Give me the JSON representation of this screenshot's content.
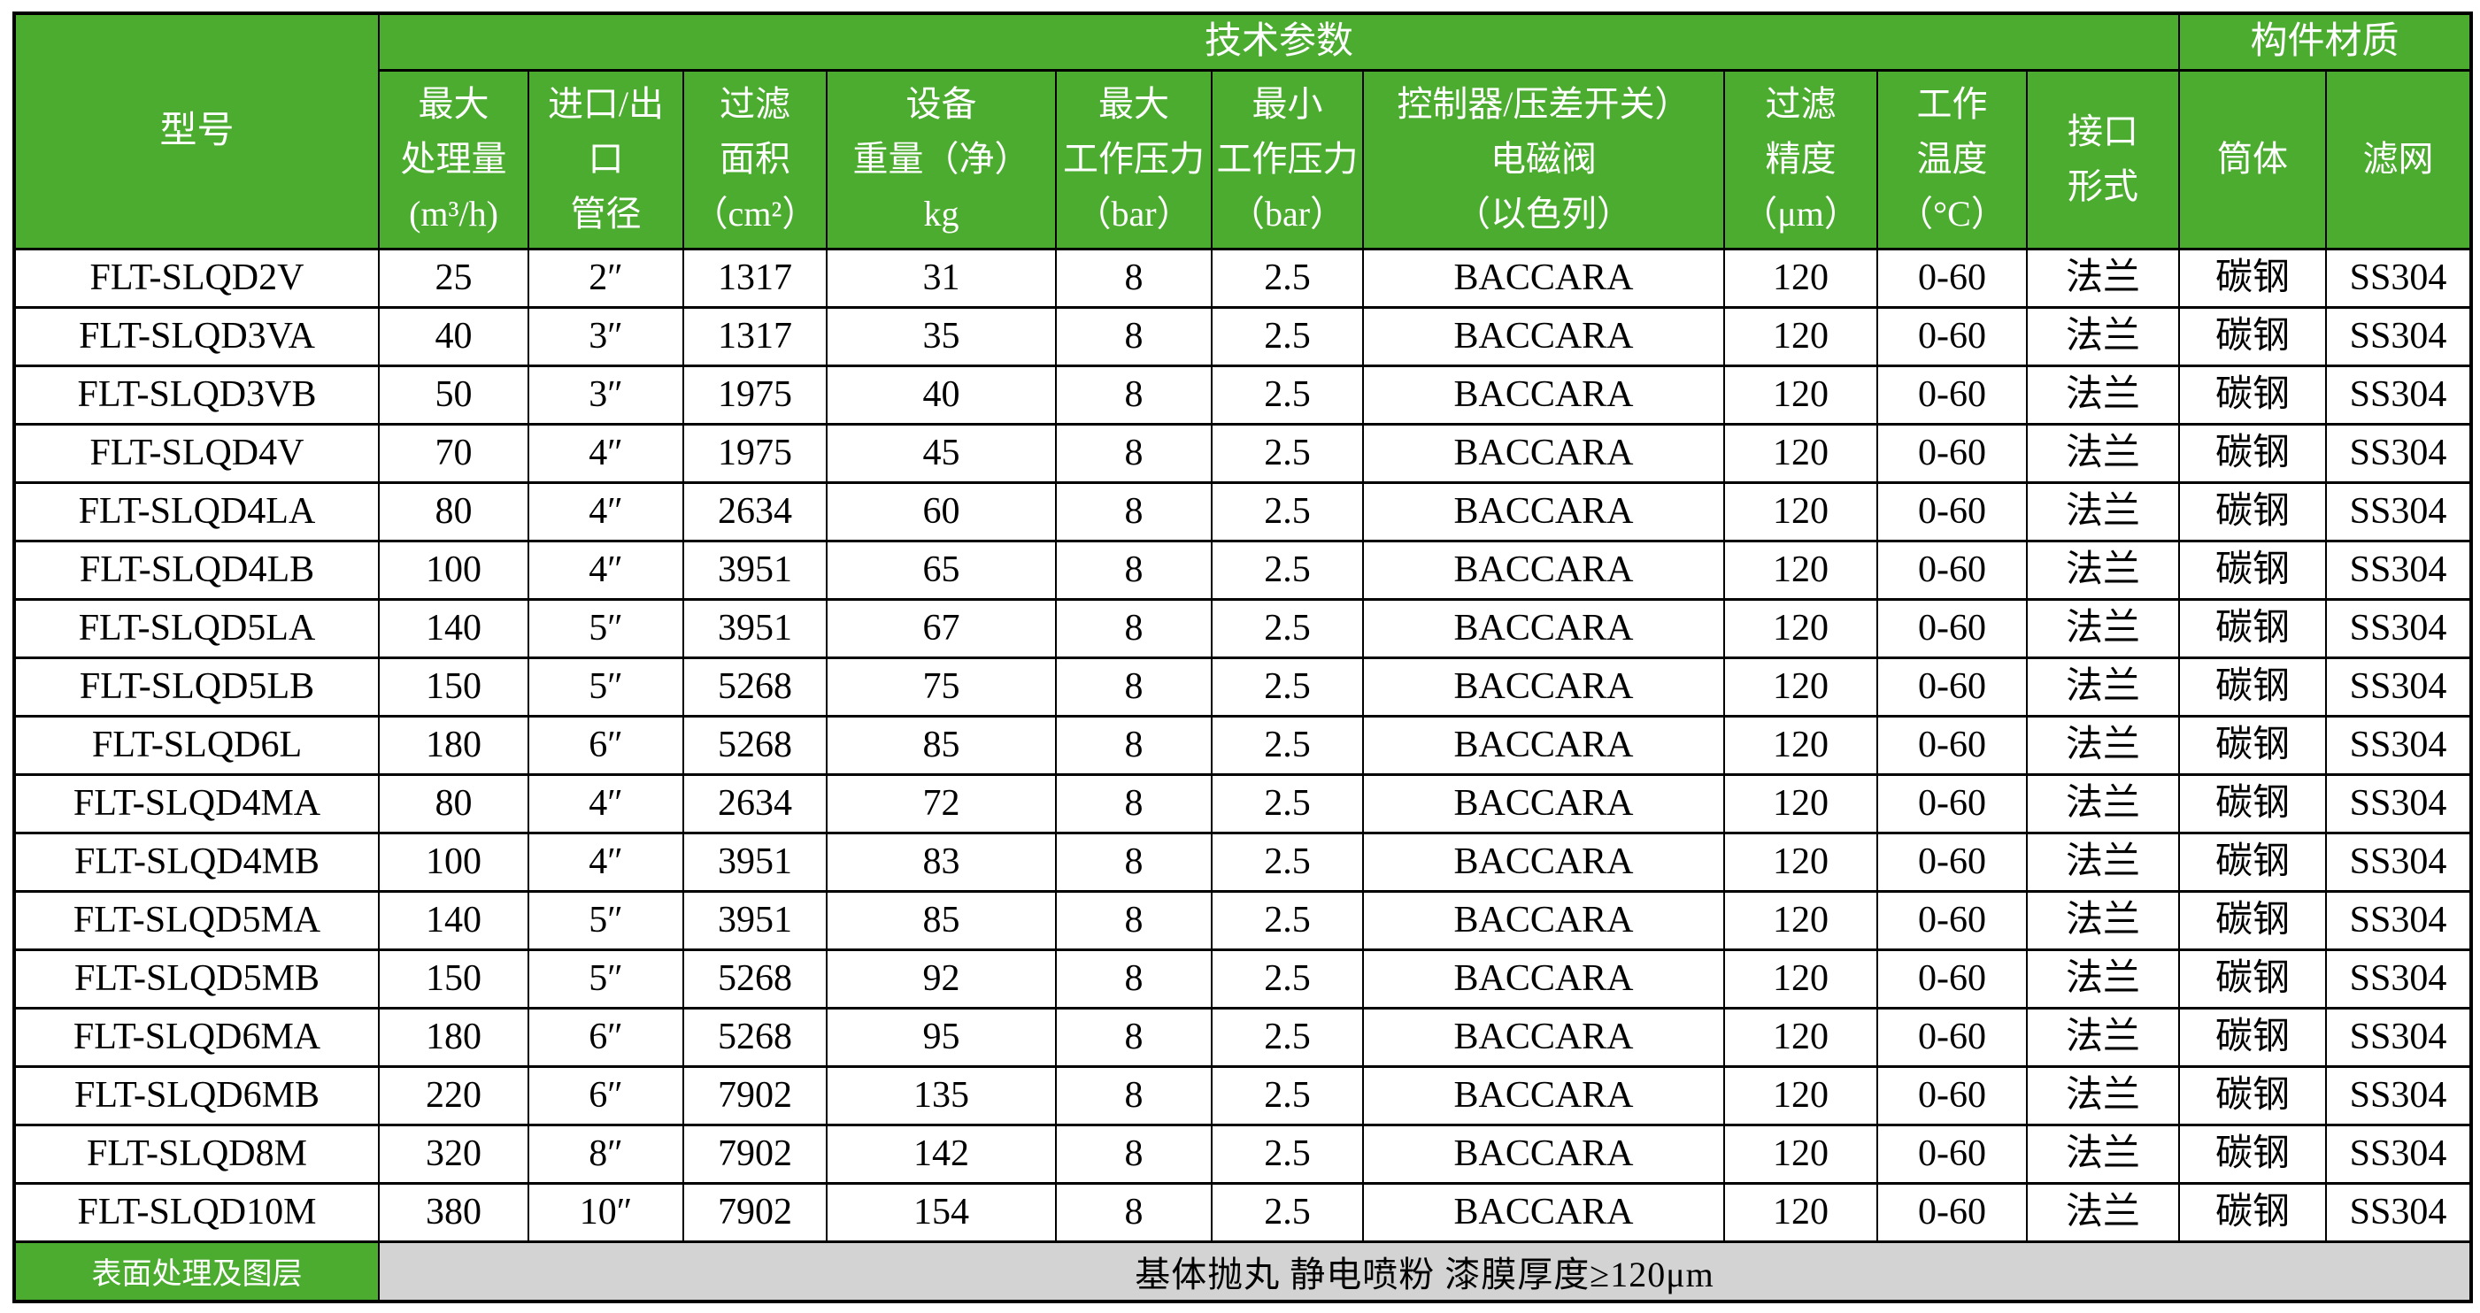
{
  "colors": {
    "header_green": "#4cac2f",
    "footer_gray": "#d3d3d3",
    "border": "#000000",
    "header_text": "#ffffff",
    "body_text": "#000000"
  },
  "table": {
    "group_headers": [
      {
        "label": "技术参数"
      },
      {
        "label": "构件材质"
      }
    ],
    "columns": [
      {
        "id": "model",
        "label_lines": [
          "型号"
        ]
      },
      {
        "id": "max_flow",
        "label_lines": [
          "最大",
          "处理量",
          "(m³/h)"
        ]
      },
      {
        "id": "pipe",
        "label_lines": [
          "进口/出",
          "口",
          "管径"
        ]
      },
      {
        "id": "filter_area",
        "label_lines": [
          "过滤",
          "面积",
          "（cm²）"
        ]
      },
      {
        "id": "weight",
        "label_lines": [
          "设备",
          "重量（净）",
          "kg"
        ]
      },
      {
        "id": "pmax",
        "label_lines": [
          "最大",
          "工作压力",
          "（bar）"
        ]
      },
      {
        "id": "pmin",
        "label_lines": [
          "最小",
          "工作压力",
          "（bar）"
        ]
      },
      {
        "id": "controller",
        "label_lines": [
          "控制器/压差开关）",
          "电磁阀",
          "（以色列）"
        ]
      },
      {
        "id": "precision",
        "label_lines": [
          "过滤",
          "精度",
          "（μm）"
        ]
      },
      {
        "id": "temp",
        "label_lines": [
          "工作",
          "温度",
          "（°C）"
        ]
      },
      {
        "id": "connection",
        "label_lines": [
          "接口",
          "形式"
        ]
      },
      {
        "id": "body",
        "label_lines": [
          "筒体"
        ]
      },
      {
        "id": "mesh",
        "label_lines": [
          "滤网"
        ]
      }
    ],
    "rows": [
      [
        "FLT-SLQD2V",
        "25",
        "2″",
        "1317",
        "31",
        "8",
        "2.5",
        "BACCARA",
        "120",
        "0-60",
        "法兰",
        "碳钢",
        "SS304"
      ],
      [
        "FLT-SLQD3VA",
        "40",
        "3″",
        "1317",
        "35",
        "8",
        "2.5",
        "BACCARA",
        "120",
        "0-60",
        "法兰",
        "碳钢",
        "SS304"
      ],
      [
        "FLT-SLQD3VB",
        "50",
        "3″",
        "1975",
        "40",
        "8",
        "2.5",
        "BACCARA",
        "120",
        "0-60",
        "法兰",
        "碳钢",
        "SS304"
      ],
      [
        "FLT-SLQD4V",
        "70",
        "4″",
        "1975",
        "45",
        "8",
        "2.5",
        "BACCARA",
        "120",
        "0-60",
        "法兰",
        "碳钢",
        "SS304"
      ],
      [
        "FLT-SLQD4LA",
        "80",
        "4″",
        "2634",
        "60",
        "8",
        "2.5",
        "BACCARA",
        "120",
        "0-60",
        "法兰",
        "碳钢",
        "SS304"
      ],
      [
        "FLT-SLQD4LB",
        "100",
        "4″",
        "3951",
        "65",
        "8",
        "2.5",
        "BACCARA",
        "120",
        "0-60",
        "法兰",
        "碳钢",
        "SS304"
      ],
      [
        "FLT-SLQD5LA",
        "140",
        "5″",
        "3951",
        "67",
        "8",
        "2.5",
        "BACCARA",
        "120",
        "0-60",
        "法兰",
        "碳钢",
        "SS304"
      ],
      [
        "FLT-SLQD5LB",
        "150",
        "5″",
        "5268",
        "75",
        "8",
        "2.5",
        "BACCARA",
        "120",
        "0-60",
        "法兰",
        "碳钢",
        "SS304"
      ],
      [
        "FLT-SLQD6L",
        "180",
        "6″",
        "5268",
        "85",
        "8",
        "2.5",
        "BACCARA",
        "120",
        "0-60",
        "法兰",
        "碳钢",
        "SS304"
      ],
      [
        "FLT-SLQD4MA",
        "80",
        "4″",
        "2634",
        "72",
        "8",
        "2.5",
        "BACCARA",
        "120",
        "0-60",
        "法兰",
        "碳钢",
        "SS304"
      ],
      [
        "FLT-SLQD4MB",
        "100",
        "4″",
        "3951",
        "83",
        "8",
        "2.5",
        "BACCARA",
        "120",
        "0-60",
        "法兰",
        "碳钢",
        "SS304"
      ],
      [
        "FLT-SLQD5MA",
        "140",
        "5″",
        "3951",
        "85",
        "8",
        "2.5",
        "BACCARA",
        "120",
        "0-60",
        "法兰",
        "碳钢",
        "SS304"
      ],
      [
        "FLT-SLQD5MB",
        "150",
        "5″",
        "5268",
        "92",
        "8",
        "2.5",
        "BACCARA",
        "120",
        "0-60",
        "法兰",
        "碳钢",
        "SS304"
      ],
      [
        "FLT-SLQD6MA",
        "180",
        "6″",
        "5268",
        "95",
        "8",
        "2.5",
        "BACCARA",
        "120",
        "0-60",
        "法兰",
        "碳钢",
        "SS304"
      ],
      [
        "FLT-SLQD6MB",
        "220",
        "6″",
        "7902",
        "135",
        "8",
        "2.5",
        "BACCARA",
        "120",
        "0-60",
        "法兰",
        "碳钢",
        "SS304"
      ],
      [
        "FLT-SLQD8M",
        "320",
        "8″",
        "7902",
        "142",
        "8",
        "2.5",
        "BACCARA",
        "120",
        "0-60",
        "法兰",
        "碳钢",
        "SS304"
      ],
      [
        "FLT-SLQD10M",
        "380",
        "10″",
        "7902",
        "154",
        "8",
        "2.5",
        "BACCARA",
        "120",
        "0-60",
        "法兰",
        "碳钢",
        "SS304"
      ]
    ],
    "footer": {
      "label": "表面处理及图层",
      "value": "基体抛丸  静电喷粉  漆膜厚度≥120μm"
    }
  }
}
